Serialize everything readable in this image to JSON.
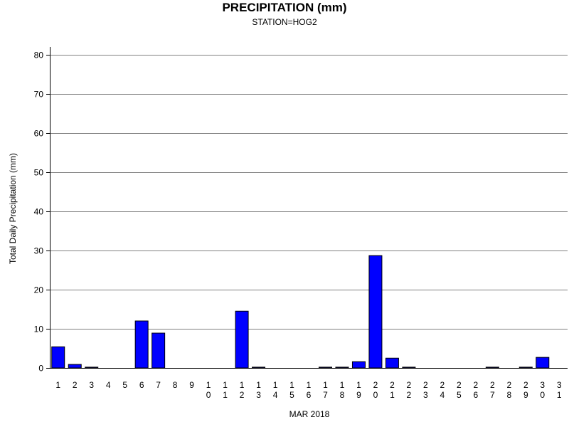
{
  "chart_data": {
    "type": "bar",
    "title": "PRECIPITATION (mm)",
    "subtitle": "STATION=HOG2",
    "xlabel": "MAR 2018",
    "ylabel": "Total Daily Precipitation (mm)",
    "ylim": [
      0,
      80
    ],
    "yticks": [
      0,
      10,
      20,
      30,
      40,
      50,
      60,
      70,
      80
    ],
    "grid": true,
    "bar_color": "#0000ff",
    "categories": [
      "1",
      "2",
      "3",
      "4",
      "5",
      "6",
      "7",
      "8",
      "9",
      "10",
      "11",
      "12",
      "13",
      "14",
      "15",
      "16",
      "17",
      "18",
      "19",
      "20",
      "21",
      "22",
      "23",
      "24",
      "25",
      "26",
      "27",
      "28",
      "29",
      "30",
      "31"
    ],
    "values": [
      5.4,
      0.9,
      0.2,
      0,
      0,
      12.0,
      8.9,
      0,
      0,
      0,
      0,
      14.5,
      0.2,
      0,
      0,
      0,
      0.2,
      0.2,
      1.6,
      28.7,
      2.5,
      0.2,
      0,
      0,
      0,
      0,
      0.2,
      0,
      0.2,
      2.7,
      0
    ]
  }
}
